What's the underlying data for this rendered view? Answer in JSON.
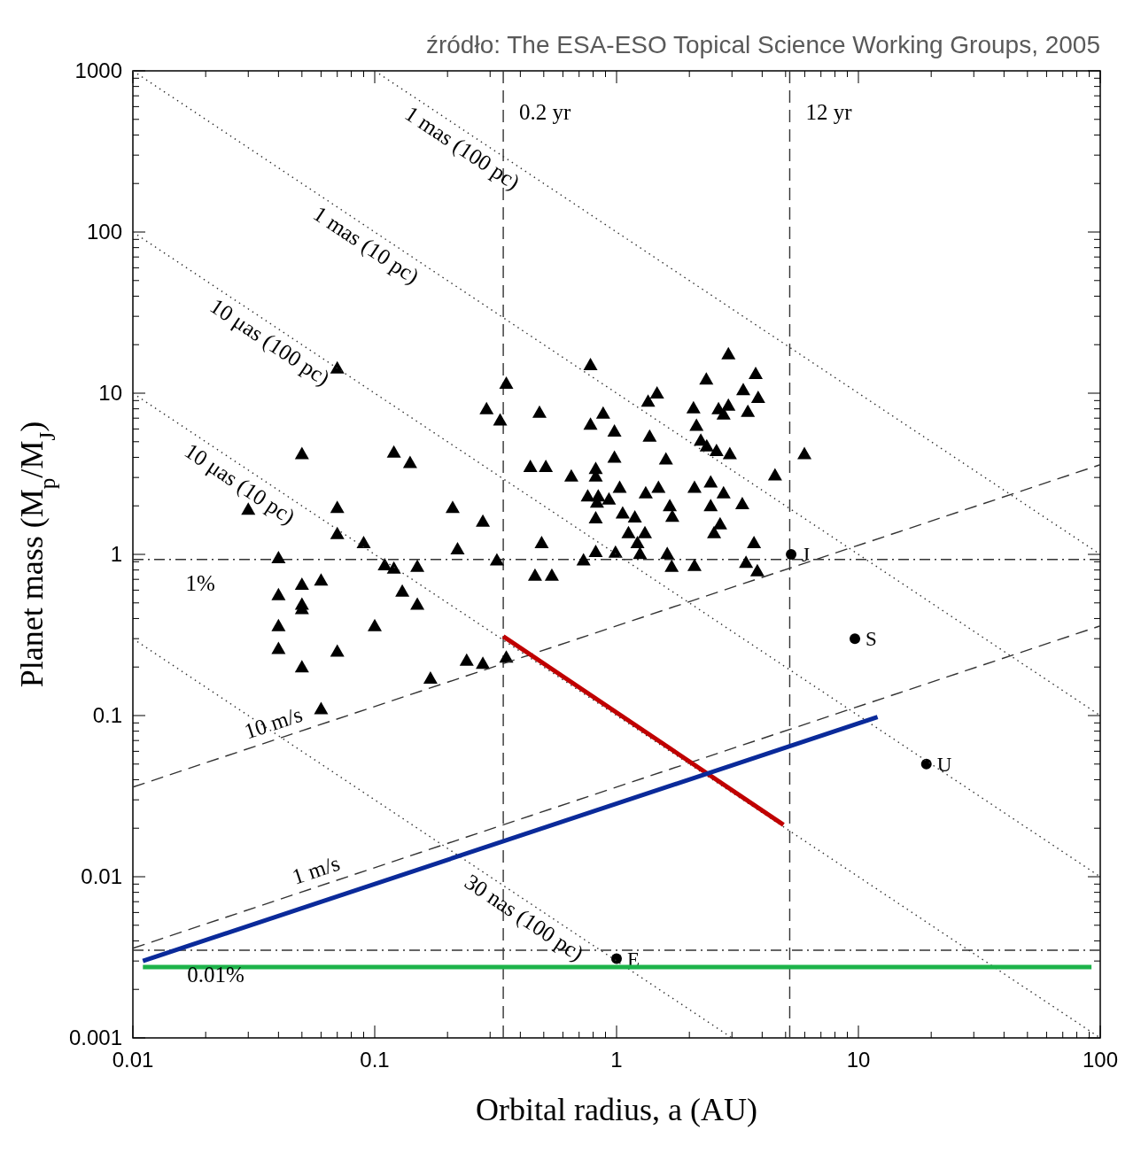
{
  "chart_data": {
    "type": "scatter",
    "xlabel": "Orbital radius, a (AU)",
    "ylabel": "Planet mass (M$_{p}$/M$_{J}$)",
    "log": "xy",
    "xlim": [
      0.01,
      100
    ],
    "ylim": [
      0.001,
      1000
    ],
    "xticks": [
      0.01,
      {
        "value": 0.02,
        "label": null
      },
      {
        "value": 0.03,
        "label": null
      },
      {
        "value": 0.04,
        "label": null
      },
      {
        "value": 0.05,
        "label": null
      },
      {
        "value": 0.06,
        "label": null
      },
      {
        "value": 0.07,
        "label": null
      },
      {
        "value": 0.08,
        "label": null
      },
      {
        "value": 0.09,
        "label": null
      },
      0.1,
      {
        "value": 0.2,
        "label": null
      },
      {
        "value": 0.3,
        "label": null
      },
      {
        "value": 0.4,
        "label": null
      },
      {
        "value": 0.5,
        "label": null
      },
      {
        "value": 0.6,
        "label": null
      },
      {
        "value": 0.7,
        "label": null
      },
      {
        "value": 0.8,
        "label": null
      },
      {
        "value": 0.9,
        "label": null
      },
      1,
      {
        "value": 2,
        "label": null
      },
      {
        "value": 3,
        "label": null
      },
      {
        "value": 4,
        "label": null
      },
      {
        "value": 5,
        "label": null
      },
      {
        "value": 6,
        "label": null
      },
      {
        "value": 7,
        "label": null
      },
      {
        "value": 8,
        "label": null
      },
      {
        "value": 9,
        "label": null
      },
      10,
      {
        "value": 20,
        "label": null
      },
      {
        "value": 30,
        "label": null
      },
      {
        "value": 40,
        "label": null
      },
      {
        "value": 50,
        "label": null
      },
      {
        "value": 60,
        "label": null
      },
      {
        "value": 70,
        "label": null
      },
      {
        "value": 80,
        "label": null
      },
      {
        "value": 90,
        "label": null
      },
      100
    ],
    "yticks": [
      0.001,
      {
        "value": 0.002,
        "label": null
      },
      {
        "value": 0.003,
        "label": null
      },
      {
        "value": 0.004,
        "label": null
      },
      {
        "value": 0.005,
        "label": null
      },
      {
        "value": 0.006,
        "label": null
      },
      {
        "value": 0.007,
        "label": null
      },
      {
        "value": 0.008,
        "label": null
      },
      {
        "value": 0.009,
        "label": null
      },
      0.01,
      {
        "value": 0.02,
        "label": null
      },
      {
        "value": 0.03,
        "label": null
      },
      {
        "value": 0.04,
        "label": null
      },
      {
        "value": 0.05,
        "label": null
      },
      {
        "value": 0.06,
        "label": null
      },
      {
        "value": 0.07,
        "label": null
      },
      {
        "value": 0.08,
        "label": null
      },
      {
        "value": 0.09,
        "label": null
      },
      0.1,
      {
        "value": 0.2,
        "label": null
      },
      {
        "value": 0.3,
        "label": null
      },
      {
        "value": 0.4,
        "label": null
      },
      {
        "value": 0.5,
        "label": null
      },
      {
        "value": 0.6,
        "label": null
      },
      {
        "value": 0.7,
        "label": null
      },
      {
        "value": 0.8,
        "label": null
      },
      {
        "value": 0.9,
        "label": null
      },
      1,
      {
        "value": 2,
        "label": null
      },
      {
        "value": 3,
        "label": null
      },
      {
        "value": 4,
        "label": null
      },
      {
        "value": 5,
        "label": null
      },
      {
        "value": 6,
        "label": null
      },
      {
        "value": 7,
        "label": null
      },
      {
        "value": 8,
        "label": null
      },
      {
        "value": 9,
        "label": null
      },
      10,
      {
        "value": 20,
        "label": null
      },
      {
        "value": 30,
        "label": null
      },
      {
        "value": 40,
        "label": null
      },
      {
        "value": 50,
        "label": null
      },
      {
        "value": 60,
        "label": null
      },
      {
        "value": 70,
        "label": null
      },
      {
        "value": 80,
        "label": null
      },
      {
        "value": 90,
        "label": null
      },
      100,
      {
        "value": 200,
        "label": null
      },
      {
        "value": 300,
        "label": null
      },
      {
        "value": 400,
        "label": null
      },
      {
        "value": 500,
        "label": null
      },
      {
        "value": 600,
        "label": null
      },
      {
        "value": 700,
        "label": null
      },
      {
        "value": 800,
        "label": null
      },
      {
        "value": 900,
        "label": null
      },
      1000
    ],
    "series": [
      {
        "marker": "triangle",
        "color": "#000000",
        "x": [
          0.03,
          0.04,
          0.04,
          0.04,
          0.04,
          0.05,
          0.05,
          0.05,
          0.05,
          0.05,
          0.06,
          0.07,
          0.07,
          0.07,
          0.07,
          0.09,
          0.1,
          0.11,
          0.12,
          0.12,
          0.13,
          0.14,
          0.15,
          0.15,
          0.17,
          0.21,
          0.22,
          0.24,
          0.28,
          0.28,
          0.32,
          0.29,
          0.33,
          0.35,
          0.35,
          0.06,
          0.78,
          0.48,
          0.88,
          0.78,
          0.98,
          1.47,
          1.35,
          1.37,
          2.9,
          2.35,
          3.76,
          3.34,
          3.85,
          2.08,
          2.64,
          2.9,
          2.77,
          3.49,
          2.14,
          2.23,
          2.36,
          2.59,
          2.94,
          5.98,
          0.44,
          0.51,
          0.98,
          1.6,
          0.82,
          0.82,
          0.65,
          1.03,
          0.76,
          0.84,
          0.83,
          0.93,
          1.32,
          1.49,
          2.1,
          2.45,
          2.77,
          4.52,
          1.66,
          2.45,
          3.31,
          0.82,
          1.06,
          1.19,
          1.7,
          2.68,
          1.12,
          1.31,
          2.53,
          3.7,
          0.49,
          1.22,
          0.82,
          0.99,
          1.25,
          1.62,
          0.73,
          1.69,
          2.1,
          3.43,
          3.82,
          0.46,
          0.54
        ],
        "values": [
          1.9,
          0.95,
          0.56,
          0.36,
          0.26,
          4.2,
          0.65,
          0.49,
          0.46,
          0.2,
          0.69,
          1.95,
          1.34,
          0.25,
          14.3,
          1.18,
          0.36,
          0.86,
          0.82,
          4.3,
          0.59,
          3.7,
          0.84,
          0.49,
          0.17,
          1.95,
          1.08,
          0.22,
          1.6,
          0.21,
          0.92,
          8,
          6.8,
          11.5,
          0.23,
          0.11,
          15,
          7.6,
          7.5,
          6.4,
          5.8,
          10,
          8.9,
          5.4,
          17.5,
          12.2,
          13.2,
          10.5,
          9.4,
          8.1,
          8,
          8.4,
          7.4,
          7.7,
          6.3,
          5.1,
          4.7,
          4.4,
          4.2,
          4.2,
          3.5,
          3.5,
          4,
          3.9,
          3.4,
          3.05,
          3.05,
          2.6,
          2.3,
          2.3,
          2.1,
          2.2,
          2.4,
          2.6,
          2.6,
          2.8,
          2.4,
          3.1,
          2,
          2,
          2.06,
          1.68,
          1.8,
          1.7,
          1.72,
          1.54,
          1.36,
          1.36,
          1.36,
          1.18,
          1.18,
          1.18,
          1.04,
          1.03,
          1.01,
          1.01,
          0.92,
          0.84,
          0.85,
          0.89,
          0.79,
          0.74,
          0.74
        ]
      },
      {
        "marker": "circle",
        "color": "#000000",
        "name": "J",
        "x": [
          5.27
        ],
        "values": [
          1.0
        ]
      },
      {
        "marker": "circle",
        "color": "#000000",
        "name": "S",
        "x": [
          9.67
        ],
        "values": [
          0.3
        ]
      },
      {
        "marker": "circle",
        "color": "#000000",
        "name": "U",
        "x": [
          19.1
        ],
        "values": [
          0.05
        ]
      },
      {
        "marker": "circle",
        "color": "#000000",
        "name": "E",
        "x": [
          1.0
        ],
        "values": [
          0.0031
        ]
      },
      {
        "type": "line",
        "line_style": "dotted",
        "color": "#333333",
        "x": [
          0.1,
          100
        ],
        "values": [
          1000,
          1
        ]
      },
      {
        "type": "line",
        "line_style": "dotted",
        "color": "#333333",
        "x": [
          0.01,
          100
        ],
        "values": [
          1000,
          0.1
        ]
      },
      {
        "type": "line",
        "line_style": "dotted",
        "color": "#333333",
        "x": [
          0.01,
          100
        ],
        "values": [
          100,
          0.01
        ]
      },
      {
        "type": "line",
        "line_style": "dotted",
        "color": "#333333",
        "x": [
          0.01,
          100
        ],
        "values": [
          10,
          0.001
        ]
      },
      {
        "type": "line",
        "line_style": "dotted",
        "color": "#333333",
        "x": [
          0.01,
          3
        ],
        "values": [
          0.3,
          0.001
        ]
      },
      {
        "type": "line",
        "line_style": "dashed",
        "color": "#333333",
        "x": [
          0.01,
          100
        ],
        "values": [
          0.036,
          3.6
        ]
      },
      {
        "type": "line",
        "line_style": "dashed",
        "color": "#333333",
        "x": [
          0.01,
          100
        ],
        "values": [
          0.0036,
          0.36
        ]
      },
      {
        "type": "line",
        "line_style": "solid",
        "color": "#c00000",
        "x": [
          0.34,
          4.9
        ],
        "values": [
          0.31,
          0.021
        ]
      },
      {
        "type": "line",
        "line_style": "solid",
        "color": "#0a2a9a",
        "x": [
          0.011,
          12
        ],
        "values": [
          0.003,
          0.098
        ]
      },
      {
        "type": "line",
        "line_style": "solid",
        "color": "#1db34a",
        "x": [
          0.011,
          92
        ],
        "values": [
          0.00275,
          0.00275
        ]
      }
    ],
    "ref_lines": [
      {
        "axis": "x",
        "value": 0.34,
        "label": "0.2 yr",
        "line_style": "dashed"
      },
      {
        "axis": "x",
        "value": 5.2,
        "label": "12 yr",
        "line_style": "dashed"
      },
      {
        "axis": "y",
        "value": 0.93
      },
      {
        "axis": "y",
        "value": 0.0035
      }
    ],
    "annotations": [
      "źródło: The ESA-ESO Topical Science Working Groups, 2005",
      {
        "text": "1 mas (100 pc)",
        "x": 0.25,
        "y": 400
      },
      {
        "text": "1 mas (10 pc)",
        "x": 0.1,
        "y": 100
      },
      {
        "text": "10 μas (100 pc)",
        "x": 0.04,
        "y": 25
      },
      {
        "text": "10 μas (10 pc)",
        "x": 0.03,
        "y": 3.3
      },
      {
        "text": "30 nas (100 pc)",
        "x": 0.45,
        "y": 0.0067
      },
      {
        "text": "10 m/s",
        "x": 0.04,
        "y": 0.072
      },
      {
        "text": "1 m/s",
        "x": 0.06,
        "y": 0.0088
      },
      {
        "text": "1%",
        "x": 0.019,
        "y": 0.93
      },
      {
        "text": "0.01%",
        "x": 0.022,
        "y": 0.0035
      }
    ]
  }
}
